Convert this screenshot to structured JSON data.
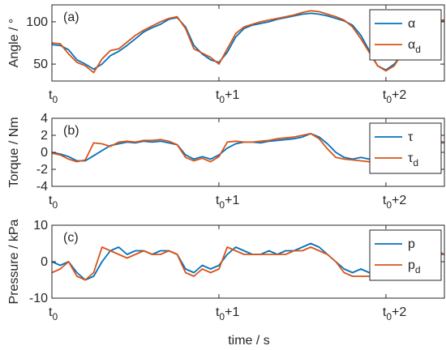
{
  "colors": {
    "series1": "#0072bd",
    "series2": "#d95319",
    "axis": "#262626"
  },
  "xlabel": "time / s",
  "x_ticks": [
    {
      "base": "t",
      "sub": "0",
      "suffix": ""
    },
    {
      "base": "t",
      "sub": "0",
      "suffix": "+1"
    },
    {
      "base": "t",
      "sub": "0",
      "suffix": "+2"
    }
  ],
  "chart_data": [
    {
      "type": "line",
      "panel_label": "(a)",
      "ylabel": "Angle / °",
      "ylim": [
        30,
        120
      ],
      "yticks": [
        50,
        100
      ],
      "xlim": [
        0,
        2.35
      ],
      "xticks": [
        0,
        1,
        2
      ],
      "legend_position": "top-right",
      "series": [
        {
          "name": "α",
          "name_sub": "",
          "color": "#0072bd",
          "x": [
            0,
            0.05,
            0.1,
            0.15,
            0.2,
            0.25,
            0.3,
            0.35,
            0.4,
            0.45,
            0.5,
            0.55,
            0.6,
            0.65,
            0.7,
            0.75,
            0.8,
            0.85,
            0.9,
            0.95,
            1.0,
            1.05,
            1.1,
            1.15,
            1.2,
            1.25,
            1.3,
            1.35,
            1.4,
            1.45,
            1.5,
            1.55,
            1.6,
            1.65,
            1.7,
            1.75,
            1.8,
            1.85,
            1.9,
            1.95,
            2.0,
            2.05,
            2.1,
            2.15,
            2.2,
            2.25,
            2.3,
            2.35
          ],
          "y": [
            73,
            72,
            67,
            55,
            50,
            44,
            50,
            60,
            65,
            72,
            80,
            88,
            93,
            97,
            103,
            105,
            94,
            72,
            62,
            55,
            52,
            64,
            82,
            92,
            96,
            98,
            100,
            103,
            105,
            107,
            109,
            110,
            109,
            107,
            104,
            101,
            96,
            84,
            66,
            48,
            43,
            50,
            62,
            82,
            96,
            99,
            100,
            101
          ]
        },
        {
          "name": "α",
          "name_sub": "d",
          "color": "#d95319",
          "x": [
            0,
            0.05,
            0.1,
            0.15,
            0.2,
            0.25,
            0.3,
            0.35,
            0.4,
            0.45,
            0.5,
            0.55,
            0.6,
            0.65,
            0.7,
            0.75,
            0.8,
            0.85,
            0.9,
            0.95,
            1.0,
            1.05,
            1.1,
            1.15,
            1.2,
            1.25,
            1.3,
            1.35,
            1.4,
            1.45,
            1.5,
            1.55,
            1.6,
            1.65,
            1.7,
            1.75,
            1.8,
            1.85,
            1.9,
            1.95,
            2.0,
            2.05,
            2.1,
            2.15,
            2.2,
            2.25,
            2.3,
            2.35
          ],
          "y": [
            75,
            74,
            62,
            52,
            48,
            40,
            56,
            66,
            68,
            76,
            84,
            90,
            95,
            100,
            104,
            106,
            92,
            68,
            63,
            58,
            50,
            68,
            86,
            94,
            97,
            100,
            102,
            104,
            106,
            108,
            111,
            113,
            112,
            109,
            106,
            102,
            94,
            80,
            64,
            48,
            42,
            48,
            64,
            86,
            98,
            101,
            102,
            102
          ]
        }
      ]
    },
    {
      "type": "line",
      "panel_label": "(b)",
      "ylabel": "Torque / Nm",
      "ylim": [
        -4,
        4
      ],
      "yticks": [
        -4,
        -2,
        0,
        2,
        4
      ],
      "xlim": [
        0,
        2.35
      ],
      "xticks": [
        0,
        1,
        2
      ],
      "legend_position": "top-right",
      "series": [
        {
          "name": "τ",
          "name_sub": "",
          "color": "#0072bd",
          "x": [
            0,
            0.05,
            0.1,
            0.15,
            0.2,
            0.25,
            0.3,
            0.35,
            0.4,
            0.45,
            0.5,
            0.55,
            0.6,
            0.65,
            0.7,
            0.75,
            0.8,
            0.85,
            0.9,
            0.95,
            1.0,
            1.05,
            1.1,
            1.15,
            1.2,
            1.25,
            1.3,
            1.35,
            1.4,
            1.45,
            1.5,
            1.55,
            1.6,
            1.65,
            1.7,
            1.75,
            1.8,
            1.85,
            1.9,
            1.95,
            2.0,
            2.05,
            2.1,
            2.15,
            2.2,
            2.25,
            2.3,
            2.35
          ],
          "y": [
            0,
            -0.2,
            -0.5,
            -1.0,
            -1.0,
            -0.4,
            0.2,
            0.8,
            1.0,
            1.2,
            1.1,
            1.3,
            1.2,
            1.3,
            1.1,
            0.9,
            -0.3,
            -0.8,
            -0.5,
            -0.8,
            -0.3,
            0.5,
            1.0,
            1.2,
            1.2,
            1.1,
            1.3,
            1.4,
            1.5,
            1.6,
            1.8,
            2.2,
            1.8,
            1.0,
            0.0,
            -0.6,
            -0.8,
            -0.6,
            -0.8,
            -0.3,
            0.2,
            0.6,
            1.0,
            1.2,
            1.3,
            1.4,
            1.2,
            1.1
          ]
        },
        {
          "name": "τ",
          "name_sub": "d",
          "color": "#d95319",
          "x": [
            0,
            0.05,
            0.1,
            0.15,
            0.2,
            0.25,
            0.3,
            0.35,
            0.4,
            0.45,
            0.5,
            0.55,
            0.6,
            0.65,
            0.7,
            0.75,
            0.8,
            0.85,
            0.9,
            0.95,
            1.0,
            1.05,
            1.1,
            1.15,
            1.2,
            1.25,
            1.3,
            1.35,
            1.4,
            1.45,
            1.5,
            1.55,
            1.6,
            1.65,
            1.7,
            1.75,
            1.8,
            1.85,
            1.9,
            1.95,
            2.0,
            2.05,
            2.1,
            2.15,
            2.2,
            2.25,
            2.3,
            2.35
          ],
          "y": [
            -0.1,
            -0.3,
            -0.8,
            -1.1,
            -0.9,
            1.1,
            1.0,
            0.7,
            1.2,
            1.3,
            1.2,
            1.4,
            1.4,
            1.5,
            1.3,
            0.9,
            -0.6,
            -1.0,
            -0.7,
            -1.1,
            -0.5,
            1.2,
            1.3,
            1.2,
            1.2,
            1.3,
            1.4,
            1.6,
            1.7,
            1.8,
            2.0,
            2.2,
            1.6,
            0.4,
            -0.6,
            -0.8,
            -0.9,
            -1.0,
            -1.1,
            -0.6,
            0.2,
            1.2,
            1.3,
            1.2,
            1.2,
            1.3,
            1.3,
            1.2
          ]
        }
      ]
    },
    {
      "type": "line",
      "panel_label": "(c)",
      "ylabel": "Pressure / kPa",
      "ylim": [
        -10,
        10
      ],
      "yticks": [
        -10,
        0,
        10
      ],
      "xlim": [
        0,
        2.35
      ],
      "xticks": [
        0,
        1,
        2
      ],
      "legend_position": "top-right",
      "series": [
        {
          "name": "p",
          "name_sub": "",
          "color": "#0072bd",
          "x": [
            0,
            0.05,
            0.1,
            0.15,
            0.2,
            0.25,
            0.3,
            0.35,
            0.4,
            0.45,
            0.5,
            0.55,
            0.6,
            0.65,
            0.7,
            0.75,
            0.8,
            0.85,
            0.9,
            0.95,
            1.0,
            1.05,
            1.1,
            1.15,
            1.2,
            1.25,
            1.3,
            1.35,
            1.4,
            1.45,
            1.5,
            1.55,
            1.6,
            1.65,
            1.7,
            1.75,
            1.8,
            1.85,
            1.9,
            1.95,
            2.0,
            2.05,
            2.1,
            2.15,
            2.2,
            2.25,
            2.3,
            2.35
          ],
          "y": [
            0,
            -1,
            0,
            -3,
            -5,
            -4,
            0,
            3,
            4,
            2,
            3,
            3,
            2,
            3,
            3,
            2,
            -2,
            -3,
            -1,
            -2,
            -1,
            2,
            4,
            3,
            2,
            2,
            3,
            2,
            3,
            3,
            4,
            5,
            4,
            2,
            0,
            -2,
            -3,
            -2,
            -3,
            -2,
            0,
            1,
            2,
            3,
            3,
            3,
            3,
            2
          ]
        },
        {
          "name": "p",
          "name_sub": "d",
          "color": "#d95319",
          "x": [
            0,
            0.05,
            0.1,
            0.15,
            0.2,
            0.25,
            0.3,
            0.35,
            0.4,
            0.45,
            0.5,
            0.55,
            0.6,
            0.65,
            0.7,
            0.75,
            0.8,
            0.85,
            0.9,
            0.95,
            1.0,
            1.05,
            1.1,
            1.15,
            1.2,
            1.25,
            1.3,
            1.35,
            1.4,
            1.45,
            1.5,
            1.55,
            1.6,
            1.65,
            1.7,
            1.75,
            1.8,
            1.85,
            1.9,
            1.95,
            2.0,
            2.05,
            2.1,
            2.15,
            2.2,
            2.25,
            2.3,
            2.35
          ],
          "y": [
            -3,
            -2,
            0,
            -4,
            -5,
            -3,
            4,
            3,
            2,
            1,
            2,
            3,
            2,
            2,
            3,
            2,
            -3,
            -4,
            -2,
            -3,
            -2,
            4,
            3,
            2,
            2,
            2,
            2,
            2,
            2,
            3,
            3,
            4,
            3,
            2,
            0,
            -3,
            -4,
            -4,
            -4,
            -3,
            0,
            3,
            2,
            2,
            2,
            2,
            2,
            2
          ]
        }
      ]
    }
  ]
}
